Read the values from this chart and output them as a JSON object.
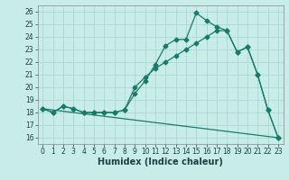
{
  "xlabel": "Humidex (Indice chaleur)",
  "background_color": "#c8ece8",
  "line_color": "#1a7a6a",
  "grid_color": "#aad8d4",
  "xlim": [
    -0.5,
    23.5
  ],
  "ylim": [
    15.5,
    26.5
  ],
  "xticks": [
    0,
    1,
    2,
    3,
    4,
    5,
    6,
    7,
    8,
    9,
    10,
    11,
    12,
    13,
    14,
    15,
    16,
    17,
    18,
    19,
    20,
    21,
    22,
    23
  ],
  "yticks": [
    16,
    17,
    18,
    19,
    20,
    21,
    22,
    23,
    24,
    25,
    26
  ],
  "curve1_x": [
    0,
    1,
    2,
    3,
    4,
    5,
    6,
    7,
    8,
    9,
    10,
    11,
    12,
    13,
    14,
    15,
    16,
    17,
    18,
    19,
    20,
    21,
    22,
    23
  ],
  "curve1_y": [
    18.3,
    18.0,
    18.5,
    18.3,
    18.0,
    18.0,
    18.0,
    18.0,
    18.2,
    19.5,
    20.5,
    21.8,
    23.3,
    23.8,
    23.8,
    25.9,
    25.3,
    24.8,
    24.5,
    22.8,
    23.2,
    21.0,
    18.2,
    16.0
  ],
  "curve2_x": [
    0,
    1,
    2,
    3,
    4,
    5,
    6,
    7,
    8,
    9,
    10,
    11,
    12,
    13,
    14,
    15,
    16,
    17,
    18,
    19,
    20,
    21,
    22,
    23
  ],
  "curve2_y": [
    18.3,
    18.0,
    18.5,
    18.3,
    18.0,
    18.0,
    18.0,
    18.0,
    18.2,
    20.0,
    20.8,
    21.5,
    22.0,
    22.5,
    23.0,
    23.5,
    24.0,
    24.5,
    24.5,
    22.8,
    23.2,
    21.0,
    18.2,
    16.0
  ],
  "line3_x": [
    0,
    23
  ],
  "line3_y": [
    18.3,
    16.0
  ],
  "tick_fontsize": 5.5,
  "xlabel_fontsize": 7
}
